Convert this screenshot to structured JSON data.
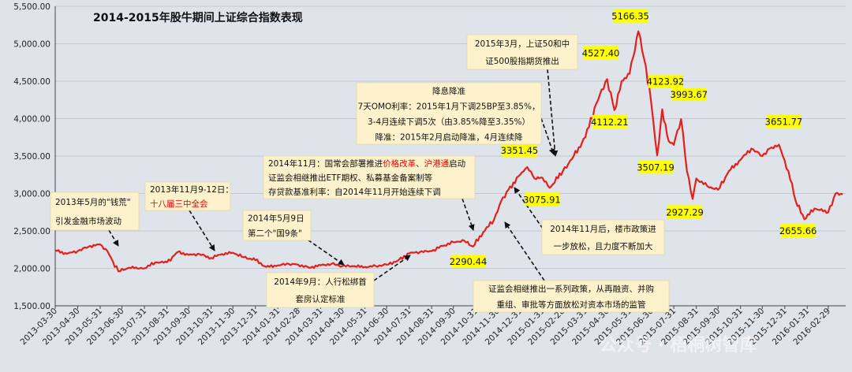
{
  "chart_data": {
    "type": "line",
    "title": "2014-2015年股牛期间上证综合指数表现",
    "xlabel": "",
    "ylabel": "",
    "ylim": [
      1500,
      5500
    ],
    "yticks": [
      "1,500.00",
      "2,000.00",
      "2,500.00",
      "3,000.00",
      "3,500.00",
      "4,000.00",
      "4,500.00",
      "5,000.00",
      "5,500.00"
    ],
    "xticks": [
      "2013-03-30",
      "2013-04-30",
      "2013-05-31",
      "2013-06-30",
      "2013-07-31",
      "2013-08-31",
      "2013-09-30",
      "2013-10-31",
      "2013-11-30",
      "2013-12-31",
      "2014-01-31",
      "2014-02-28",
      "2014-03-31",
      "2014-04-30",
      "2014-05-31",
      "2014-06-30",
      "2014-07-31",
      "2014-08-31",
      "2014-09-30",
      "2014-10-31",
      "2014-11-30",
      "2014-12-31",
      "2015-01-31",
      "2015-02-28",
      "2015-03-31",
      "2015-04-30",
      "2015-05-31",
      "2015-06-30",
      "2015-07-31",
      "2015-08-31",
      "2015-09-30",
      "2015-10-31",
      "2015-11-30",
      "2015-12-31",
      "2016-01-31",
      "2016-02-29"
    ],
    "grid": true,
    "line_color": "#e3201b",
    "series": [
      {
        "x": [
          "2013-03-30",
          "2013-04-15",
          "2013-04-30",
          "2013-05-15",
          "2013-05-31",
          "2013-06-10",
          "2013-06-25",
          "2013-07-10",
          "2013-07-31",
          "2013-08-15",
          "2013-08-31",
          "2013-09-15",
          "2013-09-30",
          "2013-10-15",
          "2013-10-31",
          "2013-11-15",
          "2013-11-30",
          "2013-12-15",
          "2013-12-31",
          "2014-01-15",
          "2014-01-31",
          "2014-02-15",
          "2014-02-28",
          "2014-03-15",
          "2014-03-31",
          "2014-04-15",
          "2014-04-30",
          "2014-05-15",
          "2014-05-31",
          "2014-06-15",
          "2014-06-30",
          "2014-07-15",
          "2014-07-31",
          "2014-08-15",
          "2014-08-31",
          "2014-09-15",
          "2014-09-30",
          "2014-10-15",
          "2014-10-27",
          "2014-11-10",
          "2014-11-25",
          "2014-12-05",
          "2014-12-15",
          "2014-12-31",
          "2015-01-10",
          "2015-01-20",
          "2015-01-31",
          "2015-02-10",
          "2015-02-28",
          "2015-03-15",
          "2015-03-31",
          "2015-04-15",
          "2015-04-30",
          "2015-05-10",
          "2015-05-20",
          "2015-05-31",
          "2015-06-12",
          "2015-06-20",
          "2015-06-30",
          "2015-07-08",
          "2015-07-15",
          "2015-07-24",
          "2015-07-31",
          "2015-08-10",
          "2015-08-18",
          "2015-08-26",
          "2015-08-31",
          "2015-09-15",
          "2015-09-30",
          "2015-10-15",
          "2015-10-31",
          "2015-11-15",
          "2015-11-30",
          "2015-12-10",
          "2015-12-23",
          "2016-01-05",
          "2016-01-15",
          "2016-01-27",
          "2016-02-10",
          "2016-02-29",
          "2016-03-10",
          "2016-03-20"
        ],
        "y": [
          2240,
          2195,
          2230,
          2290,
          2320,
          2230,
          1960,
          2010,
          2000,
          2080,
          2080,
          2220,
          2180,
          2190,
          2140,
          2190,
          2210,
          2150,
          2110,
          2020,
          2040,
          2060,
          2050,
          2010,
          2040,
          2060,
          2030,
          2030,
          2020,
          2030,
          2050,
          2100,
          2200,
          2220,
          2230,
          2300,
          2350,
          2370,
          2290.44,
          2480,
          2650,
          2900,
          3050,
          3250,
          3351.45,
          3200,
          3210,
          3075.91,
          3300,
          3500,
          3750,
          4200,
          4527.4,
          4112.21,
          4500,
          4600,
          5166.35,
          4800,
          4200,
          3507.19,
          4123.92,
          3700,
          3650,
          3993.67,
          3300,
          2927.29,
          3200,
          3100,
          3050,
          3300,
          3450,
          3600,
          3500,
          3600,
          3651.77,
          3300,
          2900,
          2655.66,
          2800,
          2750,
          3000,
          2990
        ]
      }
    ],
    "data_labels": [
      {
        "text": "2290.44",
        "x": "2014-10-27",
        "y": 2290.44
      },
      {
        "text": "3351.45",
        "x": "2015-01-10",
        "y": 3351.45
      },
      {
        "text": "3075.91",
        "x": "2015-02-10",
        "y": 3075.91
      },
      {
        "text": "4527.40",
        "x": "2015-04-30",
        "y": 4527.4
      },
      {
        "text": "4112.21",
        "x": "2015-05-10",
        "y": 4112.21
      },
      {
        "text": "5166.35",
        "x": "2015-06-12",
        "y": 5166.35
      },
      {
        "text": "4123.92",
        "x": "2015-07-15",
        "y": 4123.92
      },
      {
        "text": "3507.19",
        "x": "2015-07-08",
        "y": 3507.19
      },
      {
        "text": "3993.67",
        "x": "2015-08-10",
        "y": 3993.67
      },
      {
        "text": "2927.29",
        "x": "2015-08-26",
        "y": 2927.29
      },
      {
        "text": "3651.77",
        "x": "2015-12-23",
        "y": 3651.77
      },
      {
        "text": "2655.66",
        "x": "2016-01-27",
        "y": 2655.66
      }
    ],
    "annotations": [
      {
        "lines": [
          [
            {
              "t": "2013年5月的\"钱荒\""
            }
          ],
          [
            {
              "t": "引发金融市场波动"
            }
          ]
        ]
      },
      {
        "lines": [
          [
            {
              "t": "2013年11月9-12日："
            }
          ],
          [
            {
              "t": "十八届三中全会",
              "red": true
            }
          ]
        ]
      },
      {
        "lines": [
          [
            {
              "t": "2014年5月9日"
            }
          ],
          [
            {
              "t": "第二个\"国9条\""
            }
          ]
        ]
      },
      {
        "lines": [
          [
            {
              "t": "2014年9月：人行松绑首"
            }
          ],
          [
            {
              "t": "套房认定标准"
            }
          ]
        ]
      },
      {
        "lines": [
          [
            {
              "t": "2014年11月：国常会部署推进"
            },
            {
              "t": "价格改革",
              "red": true
            },
            {
              "t": "、"
            },
            {
              "t": "沪港通",
              "red": true
            },
            {
              "t": "启动"
            }
          ],
          [
            {
              "t": "证监会相继推出ETF期权、私募基金备案制等"
            }
          ],
          [
            {
              "t": "存贷款基准利率：自2014年11月开始连续下调"
            }
          ]
        ]
      },
      {
        "lines": [
          [
            {
              "t": "降息降准"
            }
          ],
          [
            {
              "t": "7天OMO利率：2015年1月下调25BP至3.85%，"
            }
          ],
          [
            {
              "t": "3-4月连续下调5次（由3.85%降至3.35%）"
            }
          ],
          [
            {
              "t": "降准：2015年2月启动降准，4月连续降"
            }
          ]
        ]
      },
      {
        "lines": [
          [
            {
              "t": "2015年3月，上证50和中"
            }
          ],
          [
            {
              "t": "证500股指期货推出"
            }
          ]
        ]
      },
      {
        "lines": [
          [
            {
              "t": "2014年11月后，楼市政策进"
            }
          ],
          [
            {
              "t": "一步放松，且力度不断加大"
            }
          ]
        ]
      },
      {
        "lines": [
          [
            {
              "t": "证监会相继推出一系列政策，从再融资、并购"
            }
          ],
          [
            {
              "t": "重组、审批等方面放松对资本市场的监管"
            }
          ]
        ]
      }
    ],
    "watermark": "公众号 · 梧桐树智库"
  }
}
